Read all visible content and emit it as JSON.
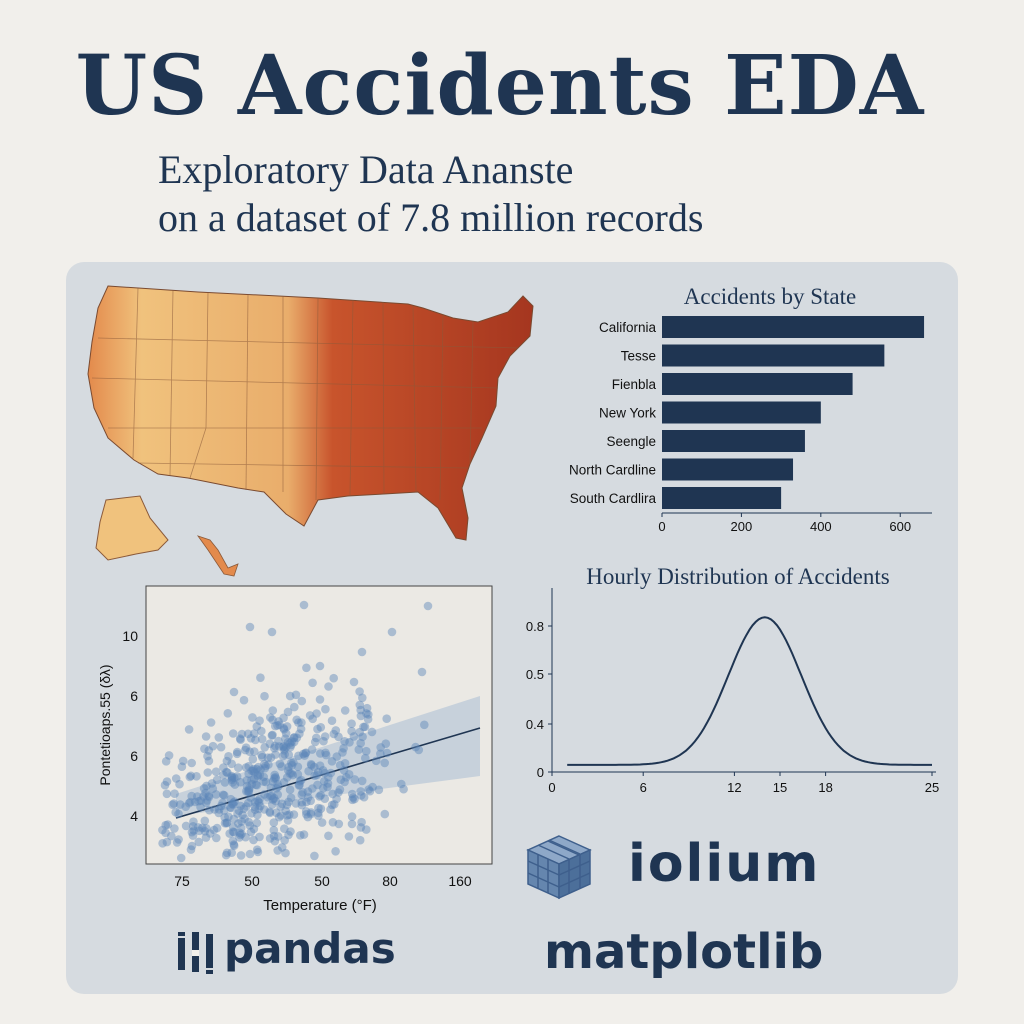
{
  "header": {
    "title": "US Accidents EDA",
    "subtitle_line1": "Exploratory Data Ananste",
    "subtitle_line2": "on a dataset of 7.8 million records"
  },
  "colors": {
    "navy": "#1f3552",
    "panel": "#d6dbe0",
    "map_light": "#f0c27d",
    "map_dark": "#a5361f",
    "scatter_point": "#5b86b8"
  },
  "chart_data": [
    {
      "type": "bar",
      "orientation": "horizontal",
      "title": "Accidents by State",
      "categories": [
        "California",
        "Tesse",
        "Fienbla",
        "New York",
        "Seengle",
        "North Cardline",
        "South Cardlira"
      ],
      "values": [
        660,
        560,
        480,
        400,
        360,
        330,
        300
      ],
      "xlim": [
        0,
        680
      ],
      "xticks": [
        "0",
        "200",
        "400",
        "600"
      ],
      "grid": false
    },
    {
      "type": "line",
      "title": "Hourly Distribution of Accidents",
      "curve": "gaussian",
      "peak": {
        "x": 14,
        "y": 0.87
      },
      "sigma": 2.4,
      "baseline": 0.04,
      "x_range": [
        1,
        25
      ],
      "ylim": [
        0,
        0.9
      ],
      "xticks": [
        "0",
        "6",
        "12",
        "15",
        "18",
        "25"
      ],
      "yticks": [
        "0",
        "0.4",
        "0.5",
        "0.8"
      ]
    },
    {
      "type": "scatter",
      "xlabel": "Temperature (°F)",
      "ylabel": "Pontetioaps.55 (δλ)",
      "xticks": [
        "75",
        "50",
        "50",
        "80",
        "160"
      ],
      "yticks": [
        "4",
        "6",
        "6",
        "10"
      ],
      "regression": {
        "shown": true,
        "confidence_band": true
      },
      "n_points": 520
    },
    {
      "type": "map",
      "description_free": true,
      "labels": []
    }
  ],
  "logos": {
    "folium": "iolium",
    "pandas": "pandas",
    "matplotlib": "matplotlib",
    "folium_icon": "cube-icon",
    "pandas_icon": "pandas-bars-icon"
  }
}
